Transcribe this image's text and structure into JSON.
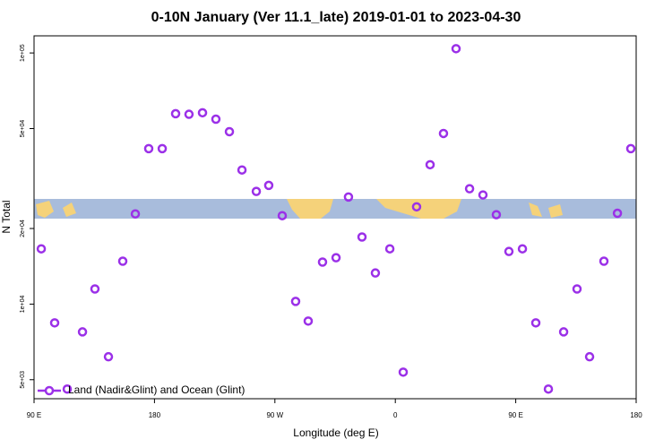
{
  "chart_data": {
    "type": "scatter",
    "title": "0-10N January (Ver 11.1_late)   2019-01-01 to 2023-04-30",
    "x_label": "Longitude (deg E)",
    "y_label": "N Total",
    "log_y": true,
    "grid": false,
    "legend_position": "lower left",
    "xlim": [
      90,
      540
    ],
    "xticks": [
      {
        "value": 90,
        "label": "90 E"
      },
      {
        "value": 180,
        "label": "180"
      },
      {
        "value": 270,
        "label": "90 W"
      },
      {
        "value": 360,
        "label": "0"
      },
      {
        "value": 450,
        "label": "90 E"
      },
      {
        "value": 540,
        "label": "180"
      }
    ],
    "ylim": [
      4200,
      117000
    ],
    "yticks": [
      {
        "value": 5000,
        "label": "5e+03"
      },
      {
        "value": 10000,
        "label": "1e+04"
      },
      {
        "value": 20000,
        "label": "2e+04"
      },
      {
        "value": 50000,
        "label": "5e+04"
      },
      {
        "value": 100000,
        "label": "1e+05"
      }
    ],
    "series": [
      {
        "name": "Land (Nadir&Glint) and Ocean (Glint)",
        "color": "#9b30e8",
        "x": [
          95.4,
          105.4,
          114.8,
          126.2,
          135.5,
          145.6,
          156.3,
          165.7,
          175.7,
          185.8,
          195.8,
          205.8,
          215.9,
          225.9,
          236.0,
          245.4,
          256.1,
          265.4,
          275.5,
          285.5,
          294.9,
          305.6,
          315.7,
          325.0,
          335.1,
          345.1,
          355.9,
          365.9,
          375.9,
          386.0,
          396.0,
          405.4,
          415.5,
          425.5,
          435.5,
          444.9,
          455.0,
          465.0,
          474.4,
          485.8,
          495.8,
          505.2,
          515.9,
          526.0,
          536.0
        ],
        "values": [
          16600,
          8420,
          4590,
          7750,
          11490,
          6170,
          14820,
          22870,
          41600,
          41600,
          57300,
          57000,
          57800,
          54500,
          48600,
          34200,
          28100,
          29700,
          22500,
          10250,
          8560,
          14700,
          15300,
          26700,
          18500,
          13300,
          16600,
          5360,
          24400,
          35900,
          47800,
          104000,
          28800,
          27200,
          22700,
          16200,
          16600,
          8420,
          4590,
          7750,
          11490,
          6170,
          14820,
          23000,
          41600
        ]
      }
    ]
  }
}
